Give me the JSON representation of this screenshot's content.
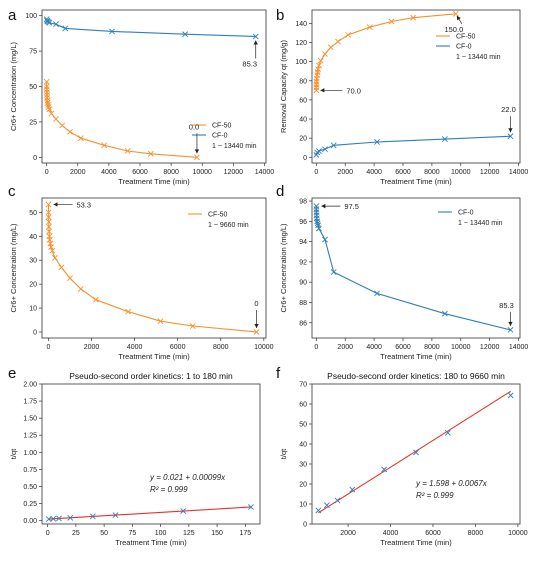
{
  "colors": {
    "cf50": "#f5922f",
    "cf0": "#2e7fb8",
    "fit": "#e4322b",
    "fitpts": "#2e7fb8"
  },
  "chart_data": [
    {
      "id": "a",
      "panel_label": "a",
      "type": "line",
      "xlabel": "Treatment Time (min)",
      "ylabel": "Cr6+ Concentration (mg/L)",
      "xlim": [
        -300,
        14100
      ],
      "ylim": [
        -4,
        104
      ],
      "xticks": [
        0,
        2000,
        4000,
        6000,
        8000,
        10000,
        12000,
        14000
      ],
      "yticks": [
        0,
        25,
        50,
        75,
        100
      ],
      "legend": {
        "position": "center-right",
        "note": "1 ~ 13440 min"
      },
      "series": [
        {
          "name": "CF-50",
          "color_key": "cf50",
          "x": [
            1,
            5,
            10,
            15,
            20,
            30,
            45,
            60,
            90,
            120,
            180,
            300,
            600,
            1000,
            1500,
            2200,
            3700,
            5200,
            6700,
            9660
          ],
          "y": [
            53.3,
            50,
            48,
            46,
            44,
            42,
            40,
            38.5,
            37,
            35.5,
            34,
            31,
            27,
            22.5,
            18,
            13.5,
            8.5,
            4.5,
            2.5,
            0
          ]
        },
        {
          "name": "CF-0",
          "color_key": "cf0",
          "x": [
            1,
            30,
            60,
            120,
            180,
            600,
            1200,
            4200,
            8900,
            13440
          ],
          "y": [
            97.5,
            96.5,
            96,
            95.5,
            95,
            94,
            91,
            88.9,
            86.9,
            85.3
          ]
        }
      ],
      "annotations": [
        {
          "text": "0.0",
          "x": 9660,
          "y": 0
        },
        {
          "text": "85.3",
          "x": 13440,
          "y": 85.3
        }
      ]
    },
    {
      "id": "b",
      "panel_label": "b",
      "type": "line",
      "xlabel": "Treatment Time (min)",
      "ylabel": "Removal Capacity qt (mg/g)",
      "xlim": [
        -300,
        14100
      ],
      "ylim": [
        -6,
        154
      ],
      "xticks": [
        0,
        2000,
        4000,
        6000,
        8000,
        10000,
        12000,
        14000
      ],
      "yticks": [
        0,
        20,
        40,
        60,
        80,
        100,
        120,
        140
      ],
      "legend": {
        "position": "top-right",
        "note": "1 ~ 13440 min"
      },
      "series": [
        {
          "name": "CF-50",
          "color_key": "cf50",
          "x": [
            1,
            5,
            10,
            20,
            30,
            60,
            90,
            120,
            180,
            300,
            600,
            1000,
            1500,
            2200,
            3700,
            5200,
            6700,
            9660
          ],
          "y": [
            70,
            73,
            76,
            79,
            82,
            86,
            89,
            92,
            96,
            101,
            108,
            115,
            121,
            128,
            136,
            142,
            146,
            150
          ]
        },
        {
          "name": "CF-0",
          "color_key": "cf0",
          "x": [
            1,
            60,
            180,
            600,
            1200,
            4200,
            8900,
            13440
          ],
          "y": [
            2.5,
            5,
            6.5,
            8.5,
            12.5,
            16,
            19,
            22
          ]
        }
      ],
      "annotations": [
        {
          "text": "70.0",
          "x": 1,
          "y": 70
        },
        {
          "text": "150.0",
          "x": 9660,
          "y": 150
        },
        {
          "text": "22.0",
          "x": 13440,
          "y": 22
        }
      ]
    },
    {
      "id": "c",
      "panel_label": "c",
      "type": "line",
      "xlabel": "Treatment Time (min)",
      "ylabel": "Cr6+ Concentration (mg/L)",
      "xlim": [
        -300,
        10100
      ],
      "ylim": [
        -2.5,
        56
      ],
      "xticks": [
        0,
        2000,
        4000,
        6000,
        8000,
        10000
      ],
      "yticks": [
        0,
        10,
        20,
        30,
        40,
        50
      ],
      "legend": {
        "position": "top-right",
        "note": "1 ~ 9660 min"
      },
      "series": [
        {
          "name": "CF-50",
          "color_key": "cf50",
          "x": [
            1,
            5,
            10,
            15,
            20,
            30,
            45,
            60,
            90,
            120,
            180,
            300,
            600,
            1000,
            1500,
            2200,
            3700,
            5200,
            6700,
            9660
          ],
          "y": [
            53.3,
            50,
            48,
            46,
            44,
            42,
            40,
            38.5,
            37,
            35.5,
            34,
            31,
            27,
            22.5,
            18,
            13.5,
            8.5,
            4.5,
            2.5,
            0
          ]
        }
      ],
      "annotations": [
        {
          "text": "53.3",
          "x": 1,
          "y": 53.3
        },
        {
          "text": "0",
          "x": 9660,
          "y": 0
        }
      ]
    },
    {
      "id": "d",
      "panel_label": "d",
      "type": "line",
      "xlabel": "Treatment Time (min)",
      "ylabel": "Cr6+ Concentration (mg/L)",
      "xlim": [
        -300,
        14100
      ],
      "ylim": [
        84.5,
        98.3
      ],
      "xticks": [
        0,
        2000,
        4000,
        6000,
        8000,
        10000,
        12000,
        14000
      ],
      "yticks": [
        86,
        88,
        90,
        92,
        94,
        96,
        98
      ],
      "legend": {
        "position": "top-right",
        "note": "1 ~ 13440 min"
      },
      "series": [
        {
          "name": "CF-0",
          "color_key": "cf0",
          "x": [
            1,
            5,
            10,
            20,
            30,
            60,
            90,
            120,
            180,
            600,
            1200,
            4200,
            8900,
            13440
          ],
          "y": [
            97.5,
            97.2,
            96.9,
            96.6,
            96.3,
            96,
            95.8,
            95.6,
            95.3,
            94.2,
            91,
            88.9,
            86.9,
            85.3
          ]
        }
      ],
      "annotations": [
        {
          "text": "97.5",
          "x": 1,
          "y": 97.5
        },
        {
          "text": "85.3",
          "x": 13440,
          "y": 85.3
        }
      ]
    },
    {
      "id": "e",
      "panel_label": "e",
      "type": "scatter",
      "title": "Pseudo-second order kinetics: 1 to 180 min",
      "xlabel": "Treatment Time (min)",
      "ylabel": "t/qt",
      "xlim": [
        -5,
        188
      ],
      "ylim": [
        -0.05,
        2.0
      ],
      "xticks": [
        0,
        25,
        50,
        75,
        100,
        125,
        150,
        175
      ],
      "xtick_labels": [
        "0",
        "25",
        "50",
        "75",
        "100",
        "125",
        "150",
        "175"
      ],
      "yticks": [
        0,
        0.25,
        0.5,
        0.75,
        1.0,
        1.25,
        1.5,
        1.75,
        2.0
      ],
      "ytick_labels": [
        "0.00",
        "0.25",
        "0.50",
        "0.75",
        "1.00",
        "1.25",
        "1.50",
        "1.75",
        "2.00"
      ],
      "points": {
        "x": [
          1,
          5,
          10,
          20,
          40,
          60,
          120,
          180
        ],
        "y": [
          0.022,
          0.026,
          0.031,
          0.041,
          0.061,
          0.08,
          0.14,
          0.199
        ]
      },
      "fit": {
        "intercept": 0.021,
        "slope": 0.00099,
        "x_range": [
          1,
          180
        ]
      },
      "equation": "y = 0.021 + 0.00099x",
      "r2": "R² = 0.999"
    },
    {
      "id": "f",
      "panel_label": "f",
      "type": "scatter",
      "title": "Pseudo-second order kinetics: 180 to 9660 min",
      "xlabel": "Treatment Time (min)",
      "ylabel": "t/qt",
      "xlim": [
        300,
        10100
      ],
      "ylim": [
        0,
        70
      ],
      "xticks": [
        2000,
        4000,
        6000,
        8000,
        10000
      ],
      "xtick_labels": [
        "2000",
        "4000",
        "6000",
        "8000",
        "10000"
      ],
      "yticks": [
        0,
        10,
        20,
        30,
        40,
        50,
        60,
        70
      ],
      "ytick_labels": [
        "0",
        "10",
        "20",
        "30",
        "40",
        "50",
        "60",
        "70"
      ],
      "points": {
        "x": [
          600,
          1000,
          1500,
          2200,
          3700,
          5200,
          6700,
          9660
        ],
        "y": [
          6.8,
          9.4,
          11.8,
          17.2,
          27.3,
          35.8,
          45.6,
          64.3
        ]
      },
      "fit": {
        "intercept": 1.598,
        "slope": 0.0067,
        "x_range": [
          600,
          9660
        ]
      },
      "equation": "y = 1.598 + 0.0067x",
      "r2": "R² = 0.999"
    }
  ]
}
